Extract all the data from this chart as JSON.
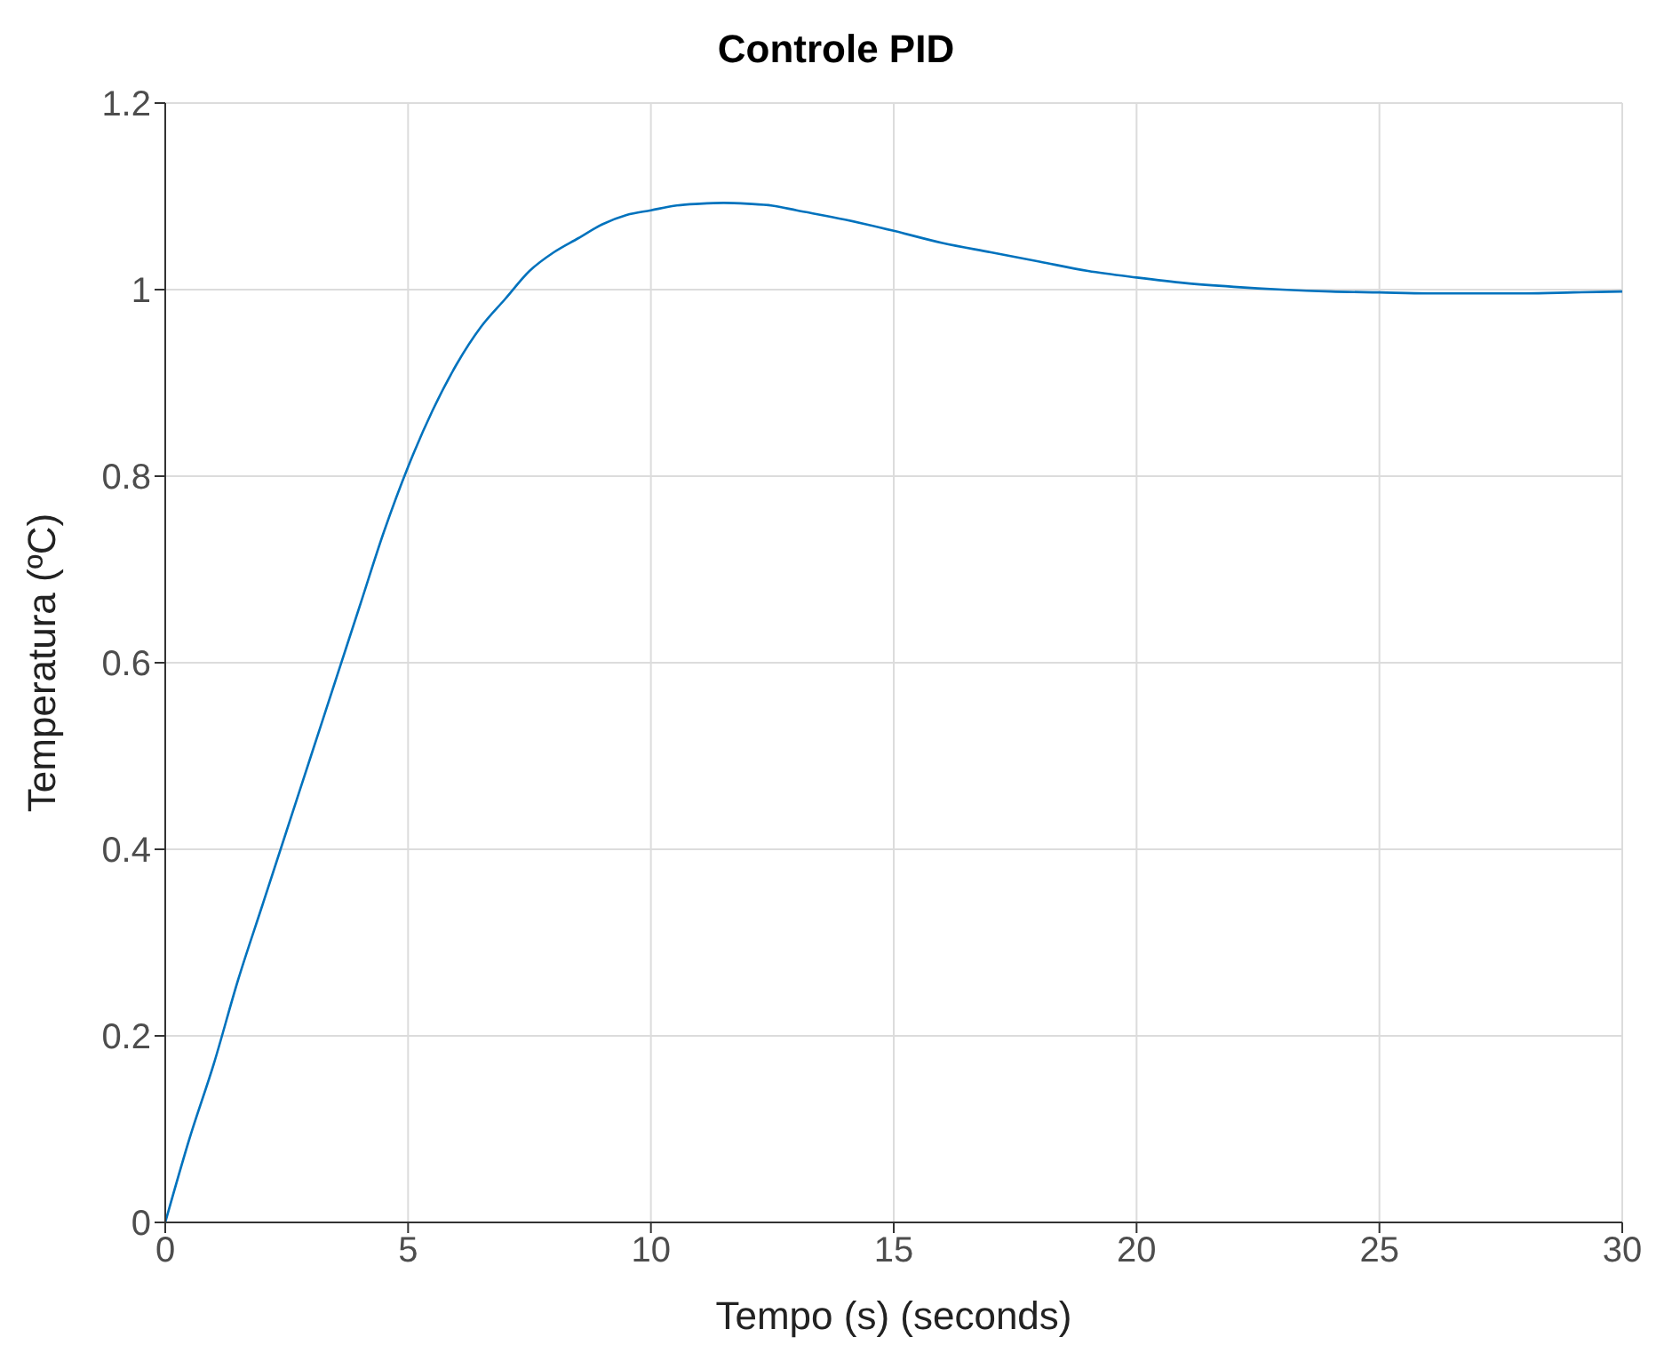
{
  "chart_data": {
    "type": "line",
    "title": "Controle PID",
    "xlabel": "Tempo (s) (seconds)",
    "ylabel": "Temperatura (ºC)",
    "x": [
      0,
      0.5,
      1,
      1.5,
      2,
      2.5,
      3,
      3.5,
      4,
      4.5,
      5,
      5.5,
      6,
      6.5,
      7,
      7.5,
      8,
      8.5,
      9,
      9.5,
      10,
      10.5,
      11,
      11.5,
      12,
      12.5,
      13,
      14,
      15,
      16,
      17,
      18,
      19,
      20,
      21,
      22,
      23,
      24,
      25,
      26,
      27,
      28,
      29,
      30
    ],
    "series": [
      {
        "color": "#0072bd",
        "values": [
          0,
          0.09,
          0.17,
          0.26,
          0.34,
          0.42,
          0.5,
          0.58,
          0.66,
          0.74,
          0.81,
          0.87,
          0.92,
          0.96,
          0.99,
          1.02,
          1.04,
          1.055,
          1.07,
          1.08,
          1.085,
          1.09,
          1.092,
          1.093,
          1.092,
          1.09,
          1.085,
          1.075,
          1.063,
          1.05,
          1.04,
          1.03,
          1.02,
          1.013,
          1.007,
          1.003,
          1.0,
          0.998,
          0.997,
          0.996,
          0.996,
          0.996,
          0.997,
          0.998
        ]
      }
    ],
    "xlim": [
      0,
      30
    ],
    "xticks": [
      0,
      5,
      10,
      15,
      20,
      25,
      30
    ],
    "ylim": [
      0,
      1.2
    ],
    "yticks": [
      0,
      0.2,
      0.4,
      0.6,
      0.8,
      1,
      1.2
    ],
    "grid": true,
    "marker": "none",
    "line_style": "solid",
    "legend": false
  }
}
